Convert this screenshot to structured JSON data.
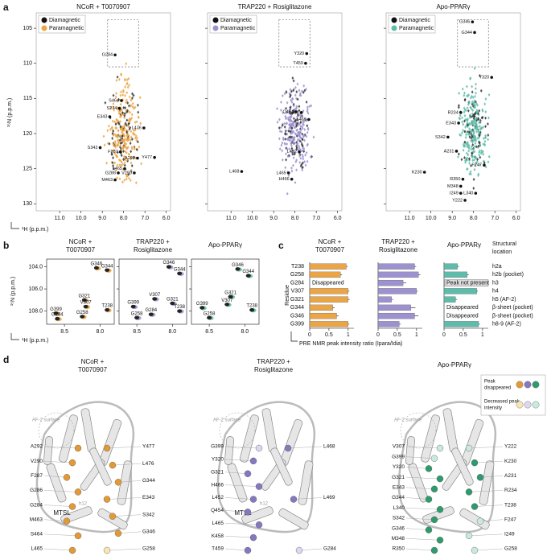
{
  "panel_labels": [
    "a",
    "b",
    "c",
    "d"
  ],
  "panel_a": {
    "legend": [
      "Diamagnetic",
      "Paramagnetic"
    ],
    "x_label": "¹H (p.p.m.)",
    "y_label": "¹⁵N (p.p.m.)",
    "xlim": [
      12.1,
      5.8
    ],
    "ylim": [
      103.5,
      131
    ],
    "xticks": [
      {
        "value": 11,
        "label": "11.0"
      },
      {
        "value": 10,
        "label": "10.0"
      },
      {
        "value": 9,
        "label": "9.0"
      },
      {
        "value": 8,
        "label": "8.0"
      },
      {
        "value": 7,
        "label": "7.0"
      },
      {
        "value": 6,
        "label": "6.0"
      }
    ],
    "yticks": [
      105,
      110,
      115,
      120,
      125,
      130
    ],
    "plots": [
      {
        "title": "NCoR + T0070907",
        "color": "#eba546",
        "peaks": [
          {
            "label": "G284",
            "x": 8.4,
            "y": 108.8
          },
          {
            "label": "S464",
            "x": 8.1,
            "y": 115.3
          },
          {
            "label": "S274",
            "x": 8.2,
            "y": 116.4
          },
          {
            "label": "E343",
            "x": 8.65,
            "y": 117.6
          },
          {
            "label": "L476",
            "x": 7.05,
            "y": 119.2
          },
          {
            "label": "S342",
            "x": 9.1,
            "y": 122.0
          },
          {
            "label": "F287",
            "x": 8.15,
            "y": 122.6
          },
          {
            "label": "A292",
            "x": 7.35,
            "y": 123.5
          },
          {
            "label": "Y477",
            "x": 6.55,
            "y": 123.4
          },
          {
            "label": "L465",
            "x": 7.95,
            "y": 125.0
          },
          {
            "label": "V290",
            "x": 7.5,
            "y": 125.6
          },
          {
            "label": "G286",
            "x": 8.25,
            "y": 125.6
          },
          {
            "label": "M463",
            "x": 8.4,
            "y": 126.6
          }
        ]
      },
      {
        "title": "TRAP220 + Rosiglitazone",
        "color": "#9d92cf",
        "peaks": [
          {
            "label": "Y320",
            "x": 7.45,
            "y": 108.6
          },
          {
            "label": "T459",
            "x": 7.5,
            "y": 110.0
          },
          {
            "label": "Q454",
            "x": 7.95,
            "y": 116.9
          },
          {
            "label": "K458",
            "x": 7.7,
            "y": 117.0
          },
          {
            "label": "L469",
            "x": 7.35,
            "y": 118.0
          },
          {
            "label": "L452",
            "x": 7.8,
            "y": 122.6
          },
          {
            "label": "L468",
            "x": 10.5,
            "y": 125.4
          },
          {
            "label": "L465",
            "x": 8.3,
            "y": 125.6
          },
          {
            "label": "H466",
            "x": 8.15,
            "y": 126.5
          }
        ]
      },
      {
        "title": "Apo-PPARγ",
        "color": "#5fbcaa",
        "peaks": [
          {
            "label": "G346",
            "x": 8.05,
            "y": 104.1
          },
          {
            "label": "G344",
            "x": 7.95,
            "y": 105.6
          },
          {
            "label": "Y320",
            "x": 7.15,
            "y": 112.0
          },
          {
            "label": "R234",
            "x": 8.6,
            "y": 117.0
          },
          {
            "label": "E343",
            "x": 8.7,
            "y": 118.5
          },
          {
            "label": "S342",
            "x": 9.2,
            "y": 120.5
          },
          {
            "label": "A231",
            "x": 8.8,
            "y": 122.5
          },
          {
            "label": "F247",
            "x": 7.5,
            "y": 124.5
          },
          {
            "label": "K230",
            "x": 10.3,
            "y": 125.5
          },
          {
            "label": "R350",
            "x": 8.5,
            "y": 126.5
          },
          {
            "label": "M348",
            "x": 8.6,
            "y": 127.5
          },
          {
            "label": "I249",
            "x": 8.6,
            "y": 128.5
          },
          {
            "label": "L340",
            "x": 7.9,
            "y": 128.5
          },
          {
            "label": "Y222",
            "x": 8.4,
            "y": 129.5
          }
        ]
      }
    ]
  },
  "panel_b": {
    "x_label": "¹H (p.p.m.)",
    "y_label": "¹⁵N (p.p.m.)",
    "xlim": [
      8.75,
      7.8
    ],
    "ylim": [
      103.3,
      109.2
    ],
    "xticks": [
      {
        "value": 8.5,
        "label": "8.5"
      },
      {
        "value": 8,
        "label": "8.0"
      }
    ],
    "yticks": [
      {
        "value": 104,
        "label": "104.0"
      },
      {
        "value": 106,
        "label": "106.0"
      },
      {
        "value": 108,
        "label": "108.0"
      }
    ],
    "plots": [
      {
        "title_lines": [
          "NCoR +",
          "T0070907"
        ],
        "color": "#eba546",
        "peaks": [
          {
            "label": "G346",
            "x": 8.05,
            "y": 104.1
          },
          {
            "label": "G344",
            "x": 7.9,
            "y": 104.3
          },
          {
            "label": "G321",
            "x": 8.22,
            "y": 107.0
          },
          {
            "label": "V307",
            "x": 8.2,
            "y": 107.6
          },
          {
            "label": "T238",
            "x": 7.9,
            "y": 107.9
          },
          {
            "label": "G399",
            "x": 8.62,
            "y": 108.2
          },
          {
            "label": "G258",
            "x": 8.25,
            "y": 108.5
          },
          {
            "label": "G284",
            "x": 8.6,
            "y": 108.7
          }
        ]
      },
      {
        "title_lines": [
          "TRAP220 +",
          "Rosiglitazone"
        ],
        "color": "#9d92cf",
        "peaks": [
          {
            "label": "G346",
            "x": 8.05,
            "y": 104.0
          },
          {
            "label": "G344",
            "x": 7.9,
            "y": 104.6
          },
          {
            "label": "V307",
            "x": 8.25,
            "y": 106.9
          },
          {
            "label": "G321",
            "x": 8.0,
            "y": 107.3
          },
          {
            "label": "G399",
            "x": 8.55,
            "y": 107.6
          },
          {
            "label": "T238",
            "x": 7.9,
            "y": 108.0
          },
          {
            "label": "G284",
            "x": 8.3,
            "y": 108.3
          },
          {
            "label": "G258",
            "x": 8.5,
            "y": 108.6
          }
        ]
      },
      {
        "title_lines": [
          "Apo-PPARγ"
        ],
        "color": "#5fbcaa",
        "peaks": [
          {
            "label": "G346",
            "x": 8.1,
            "y": 104.2
          },
          {
            "label": "G344",
            "x": 7.95,
            "y": 104.8
          },
          {
            "label": "G321",
            "x": 8.2,
            "y": 106.7
          },
          {
            "label": "V307",
            "x": 8.25,
            "y": 107.4
          },
          {
            "label": "G399",
            "x": 8.6,
            "y": 107.7
          },
          {
            "label": "T238",
            "x": 7.9,
            "y": 107.9
          },
          {
            "label": "G258",
            "x": 8.5,
            "y": 108.6
          }
        ]
      }
    ]
  },
  "panel_c": {
    "categories": [
      "T238",
      "G258",
      "G284",
      "V307",
      "G321",
      "G344",
      "G346",
      "G399"
    ],
    "structural_header": "Structural location",
    "structural_location": [
      "h2a",
      "h2b (pocket)",
      "h3",
      "h4",
      "h5 (AF-2)",
      "β-sheet (pocket)",
      "β-sheet (pocket)",
      "h8-9 (AF-2)"
    ],
    "y_label": "Residue",
    "x_label": "PRE NMR peak intensity ratio (Ipara/Idia)",
    "xlim": [
      0,
      1.15
    ],
    "xticks": [
      0,
      0.5,
      1
    ],
    "groups": [
      {
        "title_lines": [
          "NCoR +",
          "T0070907"
        ],
        "color": "#eba546",
        "values": [
          0.95,
          0.8,
          null,
          1.0,
          1.0,
          0.6,
          0.7,
          1.0
        ],
        "errors": [
          0.04,
          0.04,
          null,
          0.03,
          0.04,
          0.05,
          0.05,
          0.03
        ],
        "notes": [
          null,
          null,
          "Disappeared",
          null,
          null,
          null,
          null,
          null
        ]
      },
      {
        "title_lines": [
          "TRAP220 +",
          "Rosiglitazone"
        ],
        "color": "#9d92cf",
        "values": [
          0.95,
          1.05,
          0.65,
          1.0,
          0.35,
          0.85,
          0.95,
          0.55
        ],
        "errors": [
          0.04,
          0.05,
          0.08,
          0.03,
          0.04,
          0.12,
          0.1,
          0.04
        ],
        "notes": [
          null,
          null,
          null,
          null,
          null,
          null,
          null,
          null
        ]
      },
      {
        "title_lines": [
          "Apo-PPARγ"
        ],
        "color": "#5fbcaa",
        "values": [
          0.35,
          0.6,
          null,
          0.85,
          0.3,
          null,
          null,
          0.9
        ],
        "errors": [
          0.04,
          0.04,
          null,
          0.03,
          0.04,
          null,
          null,
          0.03
        ],
        "notes": [
          null,
          null,
          "Peak not present",
          null,
          null,
          "Disappeared",
          "Disappeared",
          null
        ]
      }
    ]
  },
  "panel_d": {
    "legend": [
      {
        "label": "Peak disappeared",
        "colors": [
          "#e39a35",
          "#8578c0",
          "#2e9a6e"
        ]
      },
      {
        "label": "Decreased peak intensity",
        "colors": [
          "#f8e6b4",
          "#dcd8f0",
          "#c9ebdf"
        ]
      }
    ],
    "structures": [
      {
        "title_lines": [
          "NCoR +",
          "T0070907"
        ],
        "annotations": [
          "AF-2 surface",
          "MTSL",
          "h12"
        ],
        "left": [
          {
            "label": "A292",
            "color": "#e39a35"
          },
          {
            "label": "V290",
            "color": "#e39a35"
          },
          {
            "label": "F287",
            "color": "#e39a35"
          },
          {
            "label": "G286",
            "color": "#e39a35"
          },
          {
            "label": "G284",
            "color": "#e39a35"
          },
          {
            "label": "M463",
            "color": "#e39a35"
          },
          {
            "label": "S464",
            "color": "#e39a35"
          },
          {
            "label": "L465",
            "color": "#e39a35"
          }
        ],
        "right": [
          {
            "label": "Y477",
            "color": "#e39a35"
          },
          {
            "label": "L476",
            "color": "#e39a35"
          },
          {
            "label": "G344",
            "color": "#e39a35"
          },
          {
            "label": "E343",
            "color": "#e39a35"
          },
          {
            "label": "S342",
            "color": "#e39a35"
          },
          {
            "label": "G346",
            "color": "#e39a35"
          },
          {
            "label": "G258",
            "color": "#f8e6b4"
          }
        ]
      },
      {
        "title_lines": [
          "TRAP220 +",
          "Rosiglitazone"
        ],
        "annotations": [
          "AF-2 surface",
          "MTSL",
          "h12"
        ],
        "left": [
          {
            "label": "G399",
            "color": "#dcd8f0"
          },
          {
            "label": "Y320",
            "color": "#8578c0"
          },
          {
            "label": "G321",
            "color": "#8578c0"
          },
          {
            "label": "H466",
            "color": "#8578c0"
          },
          {
            "label": "L452",
            "color": "#8578c0"
          },
          {
            "label": "Q454",
            "color": "#8578c0"
          },
          {
            "label": "L465",
            "color": "#8578c0"
          },
          {
            "label": "K458",
            "color": "#8578c0"
          },
          {
            "label": "T459",
            "color": "#8578c0"
          }
        ],
        "right": [
          {
            "label": "L468",
            "color": "#8578c0"
          },
          {
            "label": "L469",
            "color": "#8578c0"
          },
          {
            "label": "G284",
            "color": "#dcd8f0"
          }
        ]
      },
      {
        "title_lines": [
          "Apo-PPARγ"
        ],
        "annotations": [
          "AF-2 surface"
        ],
        "left": [
          {
            "label": "V307",
            "color": "#c9ebdf"
          },
          {
            "label": "G399",
            "color": "#c9ebdf"
          },
          {
            "label": "Y320",
            "color": "#2e9a6e"
          },
          {
            "label": "G321",
            "color": "#2e9a6e"
          },
          {
            "label": "E343",
            "color": "#2e9a6e"
          },
          {
            "label": "G344",
            "color": "#2e9a6e"
          },
          {
            "label": "L340",
            "color": "#2e9a6e"
          },
          {
            "label": "S342",
            "color": "#2e9a6e"
          },
          {
            "label": "G346",
            "color": "#2e9a6e"
          },
          {
            "label": "M348",
            "color": "#2e9a6e"
          },
          {
            "label": "R350",
            "color": "#2e9a6e"
          }
        ],
        "right": [
          {
            "label": "Y222",
            "color": "#c9ebdf"
          },
          {
            "label": "K230",
            "color": "#2e9a6e"
          },
          {
            "label": "A231",
            "color": "#2e9a6e"
          },
          {
            "label": "R234",
            "color": "#2e9a6e"
          },
          {
            "label": "T238",
            "color": "#2e9a6e"
          },
          {
            "label": "F247",
            "color": "#c9ebdf"
          },
          {
            "label": "I249",
            "color": "#c9ebdf"
          },
          {
            "label": "G258",
            "color": "#c9ebdf"
          }
        ]
      }
    ]
  }
}
